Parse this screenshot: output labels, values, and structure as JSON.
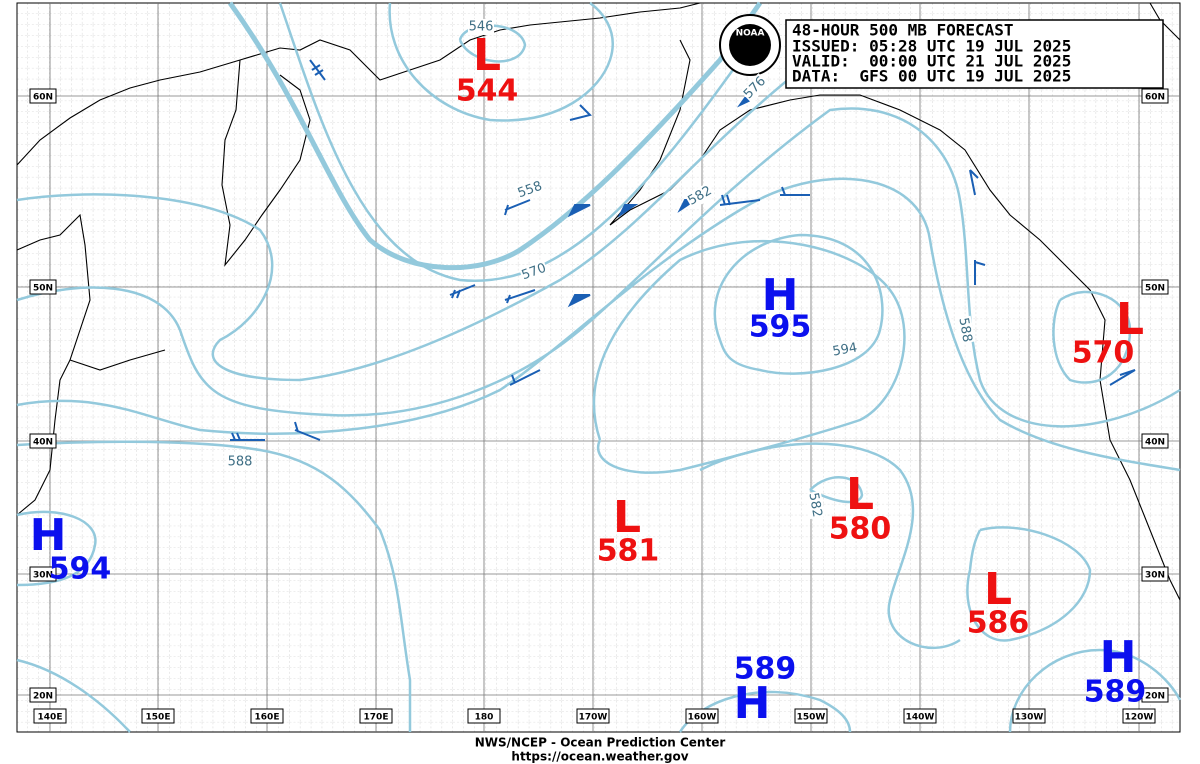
{
  "header": {
    "lines": [
      "48-HOUR 500 MB FORECAST",
      "ISSUED: 05:28 UTC 19 JUL 2025",
      "VALID:  00:00 UTC 21 JUL 2025",
      "DATA:  GFS 00 UTC 19 JUL 2025"
    ]
  },
  "lat_labels": [
    "60N",
    "50N",
    "40N",
    "30N",
    "20N"
  ],
  "lon_labels": [
    "140E",
    "150E",
    "160E",
    "170E",
    "180",
    "170W",
    "160W",
    "150W",
    "140W",
    "130W",
    "120W"
  ],
  "centers": [
    {
      "letter": "L",
      "value": "544"
    },
    {
      "letter": "H",
      "value": "595"
    },
    {
      "letter": "L",
      "value": "570"
    },
    {
      "letter": "H",
      "value": "594"
    },
    {
      "letter": "L",
      "value": "581"
    },
    {
      "letter": "L",
      "value": "580"
    },
    {
      "letter": "L",
      "value": "586"
    },
    {
      "letter": "H",
      "value": "589"
    },
    {
      "letter": "H",
      "value": "589"
    }
  ],
  "contour_labels": [
    "546",
    "558",
    "570",
    "576",
    "582",
    "588",
    "594",
    "582",
    "588"
  ],
  "footer": {
    "line1": "NWS/NCEP - Ocean Prediction Center",
    "line2": "https://ocean.weather.gov"
  }
}
